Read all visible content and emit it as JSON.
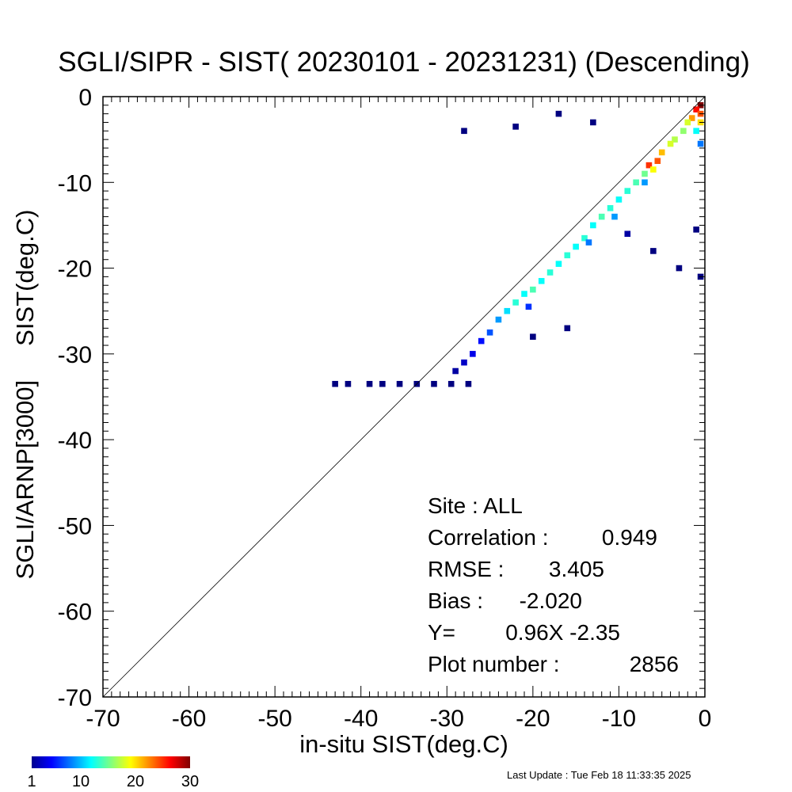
{
  "chart_data": {
    "type": "heatmap",
    "title": "SGLI/SIPR - SIST( 20230101 - 20231231) (Descending)",
    "xlabel": "in-situ SIST(deg.C)",
    "ylabel": "SGLI/ARNP[3000]     SIST(deg.C)",
    "xlim": [
      -70,
      0
    ],
    "ylim": [
      -70,
      0
    ],
    "xticks": [
      -70,
      -60,
      -50,
      -40,
      -30,
      -20,
      -10,
      0
    ],
    "yticks": [
      0,
      -10,
      -20,
      -30,
      -40,
      -50,
      -60,
      -70
    ],
    "xtick_labels": [
      "-70",
      "-60",
      "-50",
      "-40",
      "-30",
      "-20",
      "-10",
      "0"
    ],
    "ytick_labels": [
      "0",
      "-10",
      "-20",
      "-30",
      "-40",
      "-50",
      "-60",
      "-70"
    ],
    "reference_line": "y = x",
    "bin_size": 0.7,
    "colorbar": {
      "min": 1,
      "max": 30,
      "labels": [
        "1",
        "10",
        "20",
        "30"
      ],
      "colormap": "jet"
    },
    "stats": [
      {
        "label": "Site : ALL",
        "value": ""
      },
      {
        "label": "Correlation :",
        "value": "0.949"
      },
      {
        "label": "RMSE :",
        "value": "3.405"
      },
      {
        "label": "Bias :",
        "value": "-2.020"
      },
      {
        "label": "Y=",
        "value": "0.96X  -2.35"
      },
      {
        "label": "Plot number :",
        "value": "2856"
      }
    ],
    "regression": {
      "slope": 0.96,
      "intercept": -2.35
    },
    "cells": [
      [
        -0.5,
        -1.0,
        30
      ],
      [
        -1.0,
        -1.5,
        26
      ],
      [
        -0.5,
        -2.0,
        24
      ],
      [
        -1.5,
        -2.5,
        22
      ],
      [
        -0.5,
        -3.0,
        20
      ],
      [
        -2.0,
        -3.0,
        18
      ],
      [
        -2.5,
        -4.0,
        16
      ],
      [
        -1.0,
        -4.0,
        12
      ],
      [
        -3.5,
        -5.0,
        17
      ],
      [
        -0.5,
        -5.5,
        8
      ],
      [
        -4.0,
        -5.5,
        18
      ],
      [
        -5.0,
        -6.5,
        21
      ],
      [
        -5.5,
        -7.5,
        24
      ],
      [
        -6.5,
        -8.0,
        25
      ],
      [
        -6.0,
        -8.5,
        19
      ],
      [
        -7.0,
        -9.0,
        15
      ],
      [
        -8.0,
        -10.0,
        14
      ],
      [
        -7.0,
        -10.0,
        9
      ],
      [
        -9.0,
        -11.0,
        13
      ],
      [
        -10.0,
        -12.0,
        12
      ],
      [
        -11.0,
        -13.0,
        13
      ],
      [
        -12.0,
        -14.0,
        14
      ],
      [
        -10.5,
        -14.0,
        9
      ],
      [
        -13.0,
        -15.0,
        12
      ],
      [
        -14.0,
        -16.5,
        13
      ],
      [
        -15.0,
        -17.5,
        12
      ],
      [
        -16.0,
        -18.5,
        13
      ],
      [
        -13.5,
        -17.0,
        8
      ],
      [
        -17.0,
        -19.5,
        12
      ],
      [
        -18.0,
        -20.5,
        13
      ],
      [
        -19.0,
        -21.5,
        12
      ],
      [
        -20.0,
        -22.5,
        14
      ],
      [
        -21.0,
        -23.0,
        12
      ],
      [
        -22.0,
        -24.0,
        13
      ],
      [
        -23.0,
        -25.0,
        11
      ],
      [
        -24.0,
        -26.0,
        9
      ],
      [
        -20.5,
        -24.5,
        6
      ],
      [
        -25.0,
        -27.5,
        7
      ],
      [
        -26.0,
        -28.5,
        5
      ],
      [
        -27.0,
        -30.0,
        4
      ],
      [
        -28.0,
        -31.0,
        3
      ],
      [
        -29.0,
        -32.0,
        2
      ],
      [
        -27.5,
        -33.5,
        1
      ],
      [
        -29.5,
        -33.5,
        1
      ],
      [
        -31.5,
        -33.5,
        1
      ],
      [
        -33.5,
        -33.5,
        1
      ],
      [
        -35.5,
        -33.5,
        1
      ],
      [
        -37.5,
        -33.5,
        1
      ],
      [
        -39.0,
        -33.5,
        1
      ],
      [
        -41.5,
        -33.5,
        1
      ],
      [
        -43.0,
        -33.5,
        1
      ],
      [
        -9.0,
        -16.0,
        2
      ],
      [
        -6.0,
        -18.0,
        1
      ],
      [
        -3.0,
        -20.0,
        1
      ],
      [
        -13.0,
        -3.0,
        1
      ],
      [
        -17.0,
        -2.0,
        1
      ],
      [
        -22.0,
        -3.5,
        1
      ],
      [
        -28.0,
        -4.0,
        1
      ],
      [
        -1.0,
        -15.5,
        1
      ],
      [
        -0.5,
        -21.0,
        1
      ],
      [
        -20.0,
        -28.0,
        1
      ],
      [
        -16.0,
        -27.0,
        1
      ]
    ]
  },
  "footer": {
    "last_update": "Last Update : Tue Feb 18 11:33:35 2025"
  }
}
